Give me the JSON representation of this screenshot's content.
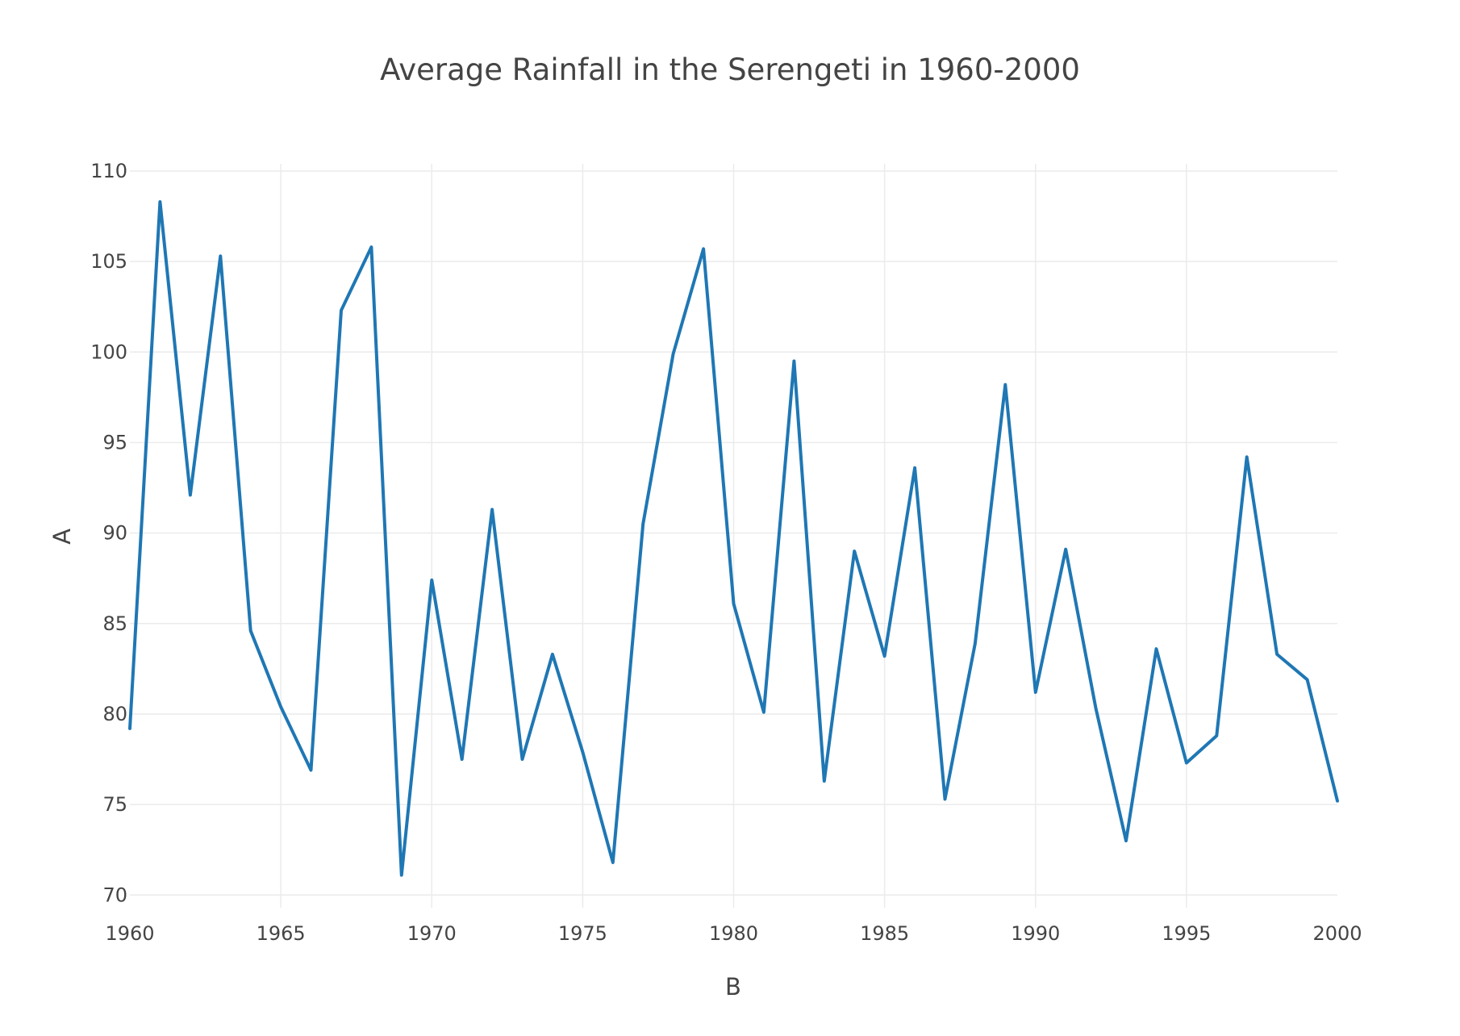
{
  "chart_data": {
    "type": "line",
    "title": "Average Rainfall in the Serengeti in 1960-2000",
    "xlabel": "B",
    "ylabel": "A",
    "xlim": [
      1960,
      2000
    ],
    "ylim": [
      69.3,
      110.4
    ],
    "x_ticks": [
      1960,
      1965,
      1970,
      1975,
      1980,
      1985,
      1990,
      1995,
      2000
    ],
    "y_ticks": [
      70,
      75,
      80,
      85,
      90,
      95,
      100,
      105,
      110
    ],
    "grid": true,
    "legend": "none",
    "series": [
      {
        "color": "#1f77b4",
        "x": [
          1960,
          1961,
          1962,
          1963,
          1964,
          1965,
          1966,
          1967,
          1968,
          1969,
          1970,
          1971,
          1972,
          1973,
          1974,
          1975,
          1976,
          1977,
          1978,
          1979,
          1980,
          1981,
          1982,
          1983,
          1984,
          1985,
          1986,
          1987,
          1988,
          1989,
          1990,
          1991,
          1992,
          1993,
          1994,
          1995,
          1996,
          1997,
          1998,
          1999,
          2000
        ],
        "values": [
          79.2,
          108.3,
          92.1,
          105.3,
          84.6,
          80.4,
          76.9,
          102.3,
          105.8,
          71.1,
          87.4,
          77.5,
          91.3,
          77.5,
          83.3,
          77.9,
          71.8,
          90.5,
          99.9,
          105.7,
          86.1,
          80.1,
          99.5,
          76.3,
          89.0,
          83.2,
          93.6,
          75.3,
          83.9,
          98.2,
          81.2,
          89.1,
          80.3,
          73.0,
          83.6,
          77.3,
          78.8,
          94.2,
          83.3,
          81.9,
          75.2
        ]
      }
    ]
  }
}
